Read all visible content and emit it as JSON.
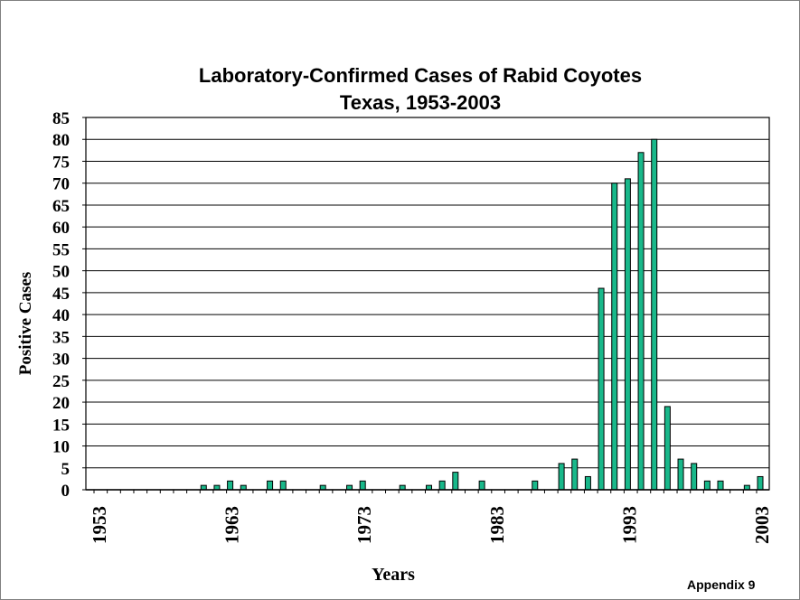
{
  "chart_data": {
    "type": "bar",
    "title": "Laboratory-Confirmed Cases of Rabid Coyotes",
    "subtitle": "Texas, 1953-2003",
    "xlabel": "Years",
    "ylabel": "Positive Cases",
    "ylim": [
      0,
      85
    ],
    "yticks": [
      0,
      5,
      10,
      15,
      20,
      25,
      30,
      35,
      40,
      45,
      50,
      55,
      60,
      65,
      70,
      75,
      80,
      85
    ],
    "xtick_labels": [
      "1953",
      "1963",
      "1973",
      "1983",
      "1993",
      "2003"
    ],
    "grid": true,
    "bar_color": "#19b88a",
    "x": [
      1953,
      1954,
      1955,
      1956,
      1957,
      1958,
      1959,
      1960,
      1961,
      1962,
      1963,
      1964,
      1965,
      1966,
      1967,
      1968,
      1969,
      1970,
      1971,
      1972,
      1973,
      1974,
      1975,
      1976,
      1977,
      1978,
      1979,
      1980,
      1981,
      1982,
      1983,
      1984,
      1985,
      1986,
      1987,
      1988,
      1989,
      1990,
      1991,
      1992,
      1993,
      1994,
      1995,
      1996,
      1997,
      1998,
      1999,
      2000,
      2001,
      2002,
      2003
    ],
    "values": [
      0,
      0,
      0,
      0,
      0,
      0,
      0,
      0,
      1,
      1,
      2,
      1,
      0,
      2,
      2,
      0,
      0,
      1,
      0,
      1,
      2,
      0,
      0,
      1,
      0,
      1,
      2,
      4,
      0,
      2,
      0,
      0,
      0,
      2,
      0,
      6,
      7,
      3,
      46,
      70,
      71,
      77,
      80,
      19,
      7,
      6,
      2,
      2,
      0,
      1,
      3
    ]
  },
  "footer": {
    "appendix": "Appendix 9"
  }
}
